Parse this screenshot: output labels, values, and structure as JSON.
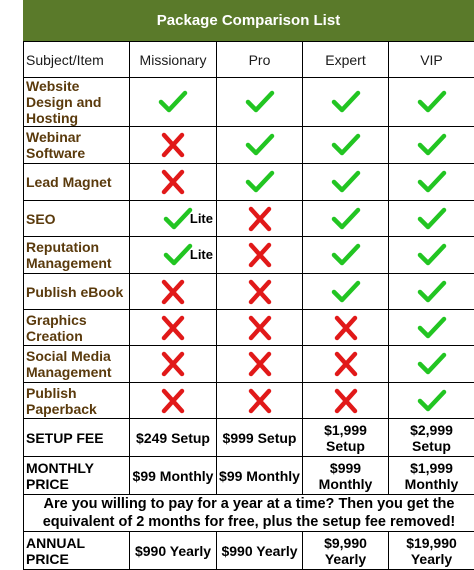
{
  "title": "Package Comparison List",
  "colors": {
    "check": "#22c522",
    "cross": "#e11919",
    "header_bar": "#5a7a2a",
    "label_text": "#5a3a0c"
  },
  "columns": [
    "Subject/Item",
    "Missionary",
    "Pro",
    "Expert",
    "VIP"
  ],
  "features": [
    {
      "label": "Website Design and Hosting",
      "marks": [
        "check",
        "check",
        "check",
        "check"
      ],
      "notes": [
        "",
        "",
        "",
        ""
      ]
    },
    {
      "label": "Webinar Software",
      "marks": [
        "cross",
        "check",
        "check",
        "check"
      ],
      "notes": [
        "",
        "",
        "",
        ""
      ]
    },
    {
      "label": "Lead Magnet",
      "marks": [
        "cross",
        "check",
        "check",
        "check"
      ],
      "notes": [
        "",
        "",
        "",
        ""
      ]
    },
    {
      "label": "SEO",
      "marks": [
        "check",
        "cross",
        "check",
        "check"
      ],
      "notes": [
        "Lite",
        "",
        "",
        ""
      ]
    },
    {
      "label": "Reputation Management",
      "marks": [
        "check",
        "cross",
        "check",
        "check"
      ],
      "notes": [
        "Lite",
        "",
        "",
        ""
      ]
    },
    {
      "label": "Publish eBook",
      "marks": [
        "cross",
        "cross",
        "check",
        "check"
      ],
      "notes": [
        "",
        "",
        "",
        ""
      ]
    },
    {
      "label": "Graphics Creation",
      "marks": [
        "cross",
        "cross",
        "cross",
        "check"
      ],
      "notes": [
        "",
        "",
        "",
        ""
      ]
    },
    {
      "label": "Social Media Management",
      "marks": [
        "cross",
        "cross",
        "cross",
        "check"
      ],
      "notes": [
        "",
        "",
        "",
        ""
      ]
    },
    {
      "label": "Publish Paperback",
      "marks": [
        "cross",
        "cross",
        "cross",
        "check"
      ],
      "notes": [
        "",
        "",
        "",
        ""
      ]
    }
  ],
  "setup_fee": {
    "label": "SETUP FEE",
    "values": [
      "$249 Setup",
      "$999 Setup",
      "$1,999 Setup",
      "$2,999 Setup"
    ]
  },
  "monthly_price": {
    "label": "MONTHLY PRICE",
    "values": [
      "$99 Monthly",
      "$99 Monthly",
      "$999 Monthly",
      "$1,999 Monthly"
    ]
  },
  "offer_note": "Are you willing to pay for a year at a time?  Then you get the equivalent of 2 months for free, plus the setup fee removed!",
  "annual_price": {
    "label": "ANNUAL PRICE",
    "values": [
      "$990 Yearly",
      "$990 Yearly",
      "$9,990 Yearly",
      "$19,990 Yearly"
    ]
  }
}
